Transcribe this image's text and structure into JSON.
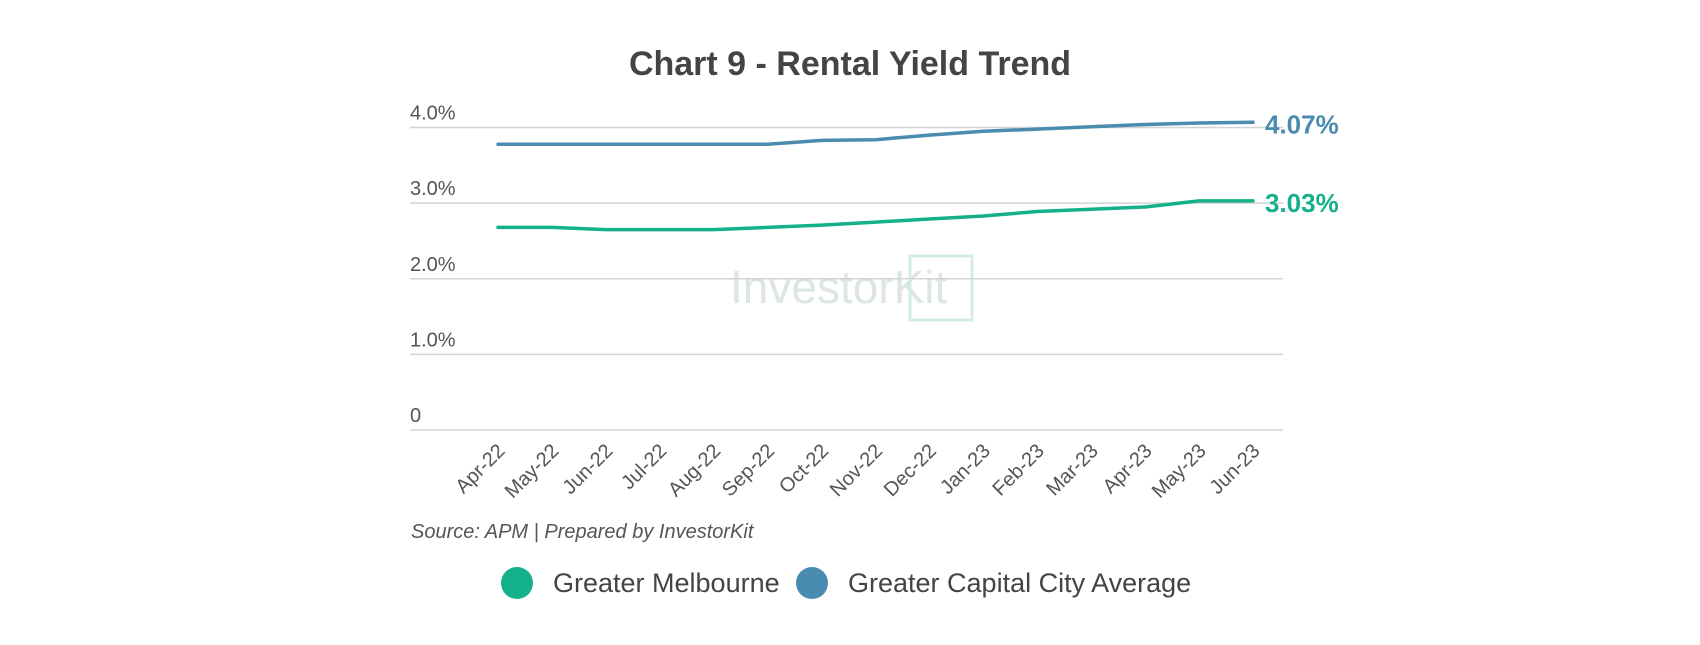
{
  "chart_data": {
    "type": "line",
    "title": "Chart 9 - Rental Yield Trend",
    "categories": [
      "Apr-22",
      "May-22",
      "Jun-22",
      "Jul-22",
      "Aug-22",
      "Sep-22",
      "Oct-22",
      "Nov-22",
      "Dec-22",
      "Jan-23",
      "Feb-23",
      "Mar-23",
      "Apr-23",
      "May-23",
      "Jun-23"
    ],
    "y_ticks": [
      {
        "value": 0,
        "label": "0"
      },
      {
        "value": 1,
        "label": "1.0%"
      },
      {
        "value": 2,
        "label": "2.0%"
      },
      {
        "value": 3,
        "label": "3.0%"
      },
      {
        "value": 4,
        "label": "4.0%"
      }
    ],
    "ylim": [
      0,
      4.1
    ],
    "grid": true,
    "source": "Source: APM | Prepared by InvestorKit",
    "watermark": "InvestorKit",
    "legend_position": "bottom",
    "series": [
      {
        "name": "Greater Melbourne",
        "color": "#14b08c",
        "values": [
          2.68,
          2.68,
          2.65,
          2.65,
          2.65,
          2.68,
          2.71,
          2.75,
          2.79,
          2.83,
          2.89,
          2.92,
          2.95,
          3.03,
          3.03
        ],
        "end_label": "3.03%"
      },
      {
        "name": "Greater Capital City Average",
        "color": "#4a8bb0",
        "values": [
          3.78,
          3.78,
          3.78,
          3.78,
          3.78,
          3.78,
          3.83,
          3.84,
          3.9,
          3.95,
          3.98,
          4.01,
          4.04,
          4.06,
          4.07
        ],
        "end_label": "4.07%"
      }
    ]
  }
}
